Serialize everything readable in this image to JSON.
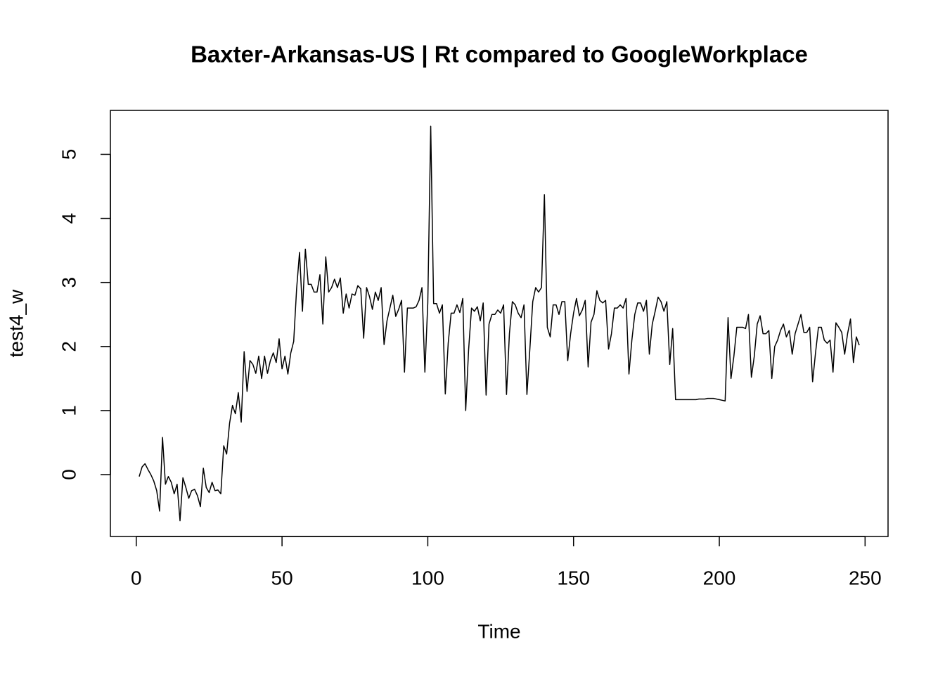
{
  "chart_data": {
    "type": "line",
    "title": "Baxter-Arkansas-US | Rt compared to GoogleWorkplace",
    "x_label": "Time",
    "y_label": "test4_w",
    "color": "#000000",
    "xlim": [
      -8.88,
      257.88
    ],
    "ylim": [
      -0.966,
      5.686
    ],
    "xticks": [
      0,
      50,
      100,
      150,
      200,
      250
    ],
    "yticks": [
      0,
      1,
      2,
      3,
      4,
      5
    ],
    "x": [
      1,
      2,
      3,
      4,
      5,
      6,
      7,
      8,
      9,
      10,
      11,
      12,
      13,
      14,
      15,
      16,
      17,
      18,
      19,
      20,
      21,
      22,
      23,
      24,
      25,
      26,
      27,
      28,
      29,
      30,
      31,
      32,
      33,
      34,
      35,
      36,
      37,
      38,
      39,
      40,
      41,
      42,
      43,
      44,
      45,
      46,
      47,
      48,
      49,
      50,
      51,
      52,
      53,
      54,
      55,
      56,
      57,
      58,
      59,
      60,
      61,
      62,
      63,
      64,
      65,
      66,
      67,
      68,
      69,
      70,
      71,
      72,
      73,
      74,
      75,
      76,
      77,
      78,
      79,
      80,
      81,
      82,
      83,
      84,
      85,
      86,
      87,
      88,
      89,
      90,
      91,
      92,
      93,
      94,
      95,
      96,
      97,
      98,
      99,
      100,
      101,
      102,
      103,
      104,
      105,
      106,
      107,
      108,
      109,
      110,
      111,
      112,
      113,
      114,
      115,
      116,
      117,
      118,
      119,
      120,
      121,
      122,
      123,
      124,
      125,
      126,
      127,
      128,
      129,
      130,
      131,
      132,
      133,
      134,
      135,
      136,
      137,
      138,
      139,
      140,
      141,
      142,
      143,
      144,
      145,
      146,
      147,
      148,
      149,
      150,
      151,
      152,
      153,
      154,
      155,
      156,
      157,
      158,
      159,
      160,
      161,
      162,
      163,
      164,
      165,
      166,
      167,
      168,
      169,
      170,
      171,
      172,
      173,
      174,
      175,
      176,
      177,
      178,
      179,
      180,
      181,
      182,
      183,
      184,
      185,
      186,
      187,
      188,
      189,
      190,
      191,
      192,
      193,
      194,
      195,
      196,
      197,
      198,
      199,
      200,
      201,
      202,
      203,
      204,
      205,
      206,
      207,
      208,
      209,
      210,
      211,
      212,
      213,
      214,
      215,
      216,
      217,
      218,
      219,
      220,
      221,
      222,
      223,
      224,
      225,
      226,
      227,
      228,
      229,
      230,
      231,
      232,
      233,
      234,
      235,
      236,
      237,
      238,
      239,
      240,
      241,
      242,
      243,
      244,
      245,
      246,
      247,
      248
    ],
    "values": [
      -0.03,
      0.12,
      0.17,
      0.08,
      0.0,
      -0.1,
      -0.25,
      -0.57,
      0.58,
      -0.15,
      -0.03,
      -0.12,
      -0.3,
      -0.15,
      -0.72,
      -0.05,
      -0.2,
      -0.37,
      -0.25,
      -0.23,
      -0.33,
      -0.5,
      0.1,
      -0.2,
      -0.28,
      -0.12,
      -0.25,
      -0.24,
      -0.3,
      0.45,
      0.32,
      0.8,
      1.08,
      0.95,
      1.28,
      0.82,
      1.92,
      1.3,
      1.78,
      1.72,
      1.58,
      1.85,
      1.5,
      1.85,
      1.58,
      1.78,
      1.9,
      1.75,
      2.12,
      1.65,
      1.85,
      1.57,
      1.9,
      2.08,
      2.9,
      3.47,
      2.55,
      3.52,
      2.97,
      2.97,
      2.85,
      2.85,
      3.12,
      2.35,
      3.4,
      2.85,
      2.92,
      3.05,
      2.92,
      3.07,
      2.52,
      2.82,
      2.6,
      2.82,
      2.8,
      2.95,
      2.9,
      2.13,
      2.92,
      2.78,
      2.58,
      2.85,
      2.72,
      2.92,
      2.03,
      2.4,
      2.6,
      2.8,
      2.47,
      2.58,
      2.72,
      1.6,
      2.6,
      2.6,
      2.6,
      2.62,
      2.72,
      2.92,
      1.6,
      2.68,
      5.44,
      2.67,
      2.67,
      2.52,
      2.65,
      1.26,
      2.05,
      2.52,
      2.52,
      2.65,
      2.53,
      2.75,
      1.0,
      1.95,
      2.6,
      2.55,
      2.62,
      2.4,
      2.68,
      1.24,
      2.35,
      2.5,
      2.5,
      2.57,
      2.52,
      2.65,
      1.25,
      2.2,
      2.7,
      2.65,
      2.52,
      2.45,
      2.65,
      1.25,
      1.95,
      2.7,
      2.92,
      2.85,
      2.92,
      4.37,
      2.3,
      2.15,
      2.65,
      2.65,
      2.5,
      2.7,
      2.7,
      1.78,
      2.2,
      2.52,
      2.75,
      2.48,
      2.57,
      2.72,
      1.68,
      2.38,
      2.5,
      2.87,
      2.72,
      2.68,
      2.72,
      1.96,
      2.2,
      2.6,
      2.6,
      2.65,
      2.6,
      2.75,
      1.57,
      2.1,
      2.5,
      2.68,
      2.68,
      2.55,
      2.72,
      1.88,
      2.35,
      2.55,
      2.77,
      2.7,
      2.55,
      2.7,
      1.72,
      2.28,
      1.17,
      1.17,
      1.17,
      1.17,
      1.17,
      1.17,
      1.17,
      1.17,
      1.18,
      1.18,
      1.18,
      1.19,
      1.19,
      1.19,
      1.18,
      1.17,
      1.16,
      1.15,
      2.45,
      1.5,
      1.85,
      2.3,
      2.3,
      2.3,
      2.28,
      2.5,
      1.52,
      1.85,
      2.35,
      2.48,
      2.2,
      2.2,
      2.25,
      1.5,
      2.0,
      2.1,
      2.25,
      2.35,
      2.15,
      2.25,
      1.88,
      2.2,
      2.35,
      2.5,
      2.22,
      2.22,
      2.3,
      1.45,
      1.9,
      2.3,
      2.3,
      2.1,
      2.05,
      2.1,
      1.6,
      2.37,
      2.3,
      2.22,
      1.88,
      2.2,
      2.43,
      1.75,
      2.15,
      2.02
    ]
  }
}
